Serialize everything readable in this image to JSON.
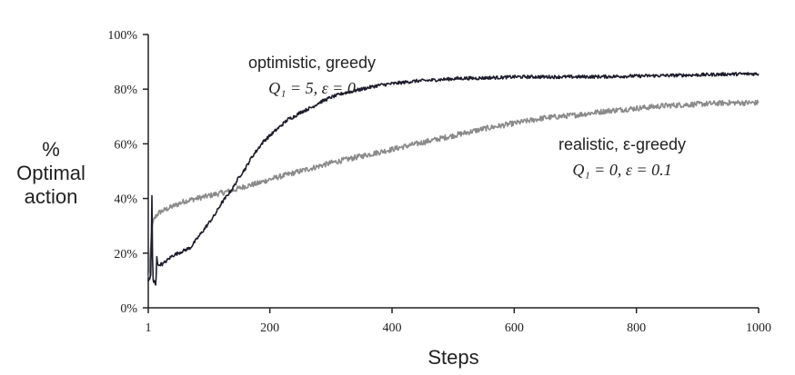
{
  "chart_data": {
    "type": "line",
    "title": "",
    "xlabel": "Steps",
    "ylabel_lines": [
      "%",
      "Optimal",
      "action"
    ],
    "xlim": [
      1,
      1000
    ],
    "ylim": [
      0,
      100
    ],
    "x_ticks": [
      1,
      200,
      400,
      600,
      800,
      1000
    ],
    "x_tick_labels": [
      "1",
      "200",
      "400",
      "600",
      "800",
      "1000"
    ],
    "y_ticks": [
      0,
      20,
      40,
      60,
      80,
      100
    ],
    "y_tick_labels": [
      "0%",
      "20%",
      "40%",
      "60%",
      "80%",
      "100%"
    ],
    "grid": false,
    "series": [
      {
        "color": "#1c1c2c",
        "noise": 0.6,
        "x": [
          1,
          2,
          3,
          4,
          5,
          6,
          7,
          8,
          9,
          10,
          11,
          12,
          13,
          14,
          15,
          16,
          18,
          20,
          25,
          30,
          40,
          50,
          60,
          70,
          80,
          90,
          100,
          110,
          120,
          130,
          140,
          150,
          160,
          170,
          180,
          190,
          200,
          210,
          220,
          230,
          240,
          250,
          260,
          270,
          280,
          290,
          300,
          320,
          340,
          360,
          380,
          400,
          420,
          440,
          460,
          480,
          500,
          520,
          540,
          560,
          580,
          600,
          650,
          700,
          750,
          800,
          850,
          900,
          950,
          1000
        ],
        "values": [
          10,
          11,
          10,
          11,
          12,
          25,
          41,
          18,
          10,
          9,
          10,
          9,
          8,
          12,
          19,
          17,
          15,
          16,
          16,
          17,
          19,
          20,
          21,
          22,
          25,
          28,
          31,
          34,
          38,
          41,
          44,
          48,
          51,
          55,
          58,
          61,
          63,
          65,
          67,
          69,
          70,
          71.5,
          72.5,
          73.5,
          75,
          76,
          77,
          78.5,
          79.5,
          80.5,
          81.5,
          82,
          82.5,
          83,
          83.2,
          83.5,
          83.8,
          84,
          84,
          84.2,
          84.3,
          84.5,
          84.5,
          84.5,
          84.6,
          84.8,
          85,
          85.2,
          85.5,
          85.6
        ],
        "annotation": {
          "line1": "optimistic, greedy",
          "line2": "Q₁ = 5,  ε = 0",
          "x": 200,
          "y": 86
        }
      },
      {
        "color": "#8a8a8a",
        "noise": 1.0,
        "x": [
          1,
          2,
          3,
          4,
          5,
          6,
          7,
          8,
          9,
          10,
          12,
          15,
          20,
          30,
          40,
          50,
          60,
          80,
          100,
          120,
          140,
          160,
          180,
          200,
          250,
          300,
          350,
          400,
          450,
          500,
          550,
          600,
          650,
          700,
          750,
          800,
          850,
          900,
          950,
          1000
        ],
        "values": [
          11,
          12,
          13,
          18,
          22,
          26,
          29,
          30,
          31,
          32,
          33,
          34,
          35,
          36,
          37,
          38,
          39,
          40,
          41,
          42,
          43,
          44.5,
          45.5,
          47,
          50,
          53,
          55.5,
          58,
          60.5,
          63,
          65.5,
          67.5,
          69.5,
          70.5,
          72,
          73,
          74,
          74.5,
          75,
          75
        ],
        "annotation": {
          "line1": "realistic, ε-greedy",
          "line2": "Q₁ = 0,  ε = 0.1",
          "x": 640,
          "y": 60
        }
      }
    ]
  }
}
